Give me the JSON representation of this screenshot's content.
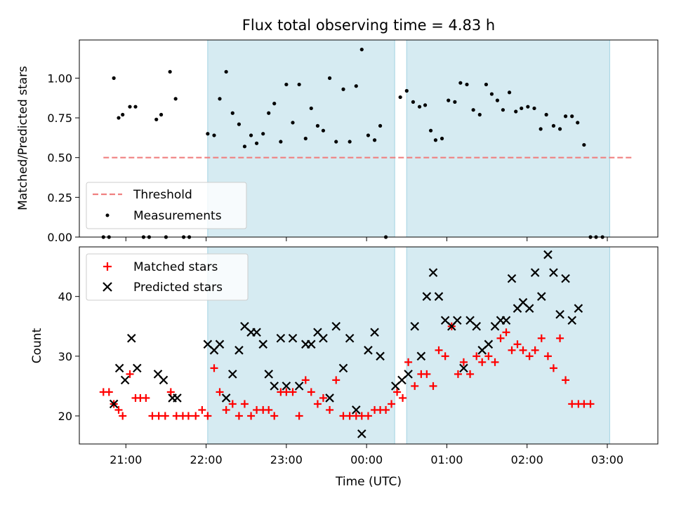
{
  "chart_data": [
    {
      "type": "scatter",
      "title": "Flux total observing time = 4.83 h",
      "ylabel": "Matched/Predicted stars",
      "ylim": [
        0,
        1.24
      ],
      "yticks": [
        0,
        0.25,
        0.5,
        0.75,
        1.0
      ],
      "ytick_labels": [
        "0.00",
        "0.25",
        "0.50",
        "0.75",
        "1.00"
      ],
      "xlim": [
        20.42,
        27.63
      ],
      "xticks": [
        21,
        22,
        23,
        24,
        25,
        26,
        27
      ],
      "grid": false,
      "legend_position": "lower-left",
      "shaded_intervals": [
        [
          22.02,
          24.35
        ],
        [
          24.5,
          27.03
        ]
      ],
      "threshold": {
        "name": "Threshold",
        "value": 0.5,
        "x_range": [
          20.72,
          27.3
        ],
        "color": "#f08080"
      },
      "measurements": {
        "name": "Measurements",
        "color": "#000000",
        "points": [
          [
            20.72,
            0
          ],
          [
            20.79,
            0
          ],
          [
            20.85,
            1.0
          ],
          [
            20.91,
            0.75
          ],
          [
            20.96,
            0.77
          ],
          [
            21.05,
            0.82
          ],
          [
            21.12,
            0.82
          ],
          [
            21.22,
            0
          ],
          [
            21.29,
            0
          ],
          [
            21.38,
            0.74
          ],
          [
            21.44,
            0.77
          ],
          [
            21.5,
            0
          ],
          [
            21.55,
            1.04
          ],
          [
            21.62,
            0.87
          ],
          [
            21.72,
            0
          ],
          [
            21.79,
            0
          ],
          [
            22.02,
            0.65
          ],
          [
            22.1,
            0.64
          ],
          [
            22.17,
            0.87
          ],
          [
            22.25,
            1.04
          ],
          [
            22.33,
            0.78
          ],
          [
            22.41,
            0.71
          ],
          [
            22.48,
            0.57
          ],
          [
            22.56,
            0.64
          ],
          [
            22.63,
            0.59
          ],
          [
            22.71,
            0.65
          ],
          [
            22.78,
            0.78
          ],
          [
            22.85,
            0.84
          ],
          [
            22.93,
            0.6
          ],
          [
            23.0,
            0.96
          ],
          [
            23.08,
            0.72
          ],
          [
            23.16,
            0.96
          ],
          [
            23.24,
            0.62
          ],
          [
            23.31,
            0.81
          ],
          [
            23.39,
            0.7
          ],
          [
            23.46,
            0.67
          ],
          [
            23.54,
            1.0
          ],
          [
            23.62,
            0.6
          ],
          [
            23.71,
            0.93
          ],
          [
            23.79,
            0.6
          ],
          [
            23.87,
            0.95
          ],
          [
            23.94,
            1.18
          ],
          [
            24.02,
            0.64
          ],
          [
            24.1,
            0.61
          ],
          [
            24.17,
            0.7
          ],
          [
            24.24,
            0
          ],
          [
            24.42,
            0.88
          ],
          [
            24.5,
            0.92
          ],
          [
            24.58,
            0.85
          ],
          [
            24.66,
            0.82
          ],
          [
            24.73,
            0.83
          ],
          [
            24.8,
            0.67
          ],
          [
            24.86,
            0.61
          ],
          [
            24.94,
            0.62
          ],
          [
            25.02,
            0.86
          ],
          [
            25.1,
            0.85
          ],
          [
            25.17,
            0.97
          ],
          [
            25.25,
            0.96
          ],
          [
            25.33,
            0.8
          ],
          [
            25.41,
            0.77
          ],
          [
            25.49,
            0.96
          ],
          [
            25.56,
            0.9
          ],
          [
            25.63,
            0.86
          ],
          [
            25.7,
            0.8
          ],
          [
            25.78,
            0.91
          ],
          [
            25.86,
            0.79
          ],
          [
            25.93,
            0.81
          ],
          [
            26.01,
            0.82
          ],
          [
            26.09,
            0.81
          ],
          [
            26.17,
            0.68
          ],
          [
            26.24,
            0.77
          ],
          [
            26.33,
            0.7
          ],
          [
            26.41,
            0.68
          ],
          [
            26.48,
            0.76
          ],
          [
            26.56,
            0.76
          ],
          [
            26.63,
            0.72
          ],
          [
            26.71,
            0.58
          ],
          [
            26.79,
            0
          ],
          [
            26.86,
            0
          ],
          [
            26.94,
            0
          ]
        ]
      }
    },
    {
      "type": "scatter",
      "xlabel": "Time (UTC)",
      "ylabel": "Count",
      "ylim": [
        15.3,
        48.3
      ],
      "yticks": [
        20,
        30,
        40
      ],
      "ytick_labels": [
        "20",
        "30",
        "40"
      ],
      "xlim": [
        20.42,
        27.63
      ],
      "xticks": [
        21,
        22,
        23,
        24,
        25,
        26,
        27
      ],
      "xtick_labels": [
        "21:00",
        "22:00",
        "23:00",
        "00:00",
        "01:00",
        "02:00",
        "03:00"
      ],
      "grid": false,
      "legend_position": "top-left",
      "shaded_intervals": [
        [
          22.02,
          24.35
        ],
        [
          24.5,
          27.03
        ]
      ],
      "series": [
        {
          "name": "Matched stars",
          "color": "#ff0000",
          "marker": "plus",
          "points": [
            [
              20.72,
              24
            ],
            [
              20.79,
              24
            ],
            [
              20.85,
              22
            ],
            [
              20.91,
              21
            ],
            [
              20.96,
              20
            ],
            [
              21.05,
              27
            ],
            [
              21.12,
              23
            ],
            [
              21.18,
              23
            ],
            [
              21.25,
              23
            ],
            [
              21.33,
              20
            ],
            [
              21.41,
              20
            ],
            [
              21.49,
              20
            ],
            [
              21.56,
              24
            ],
            [
              21.63,
              20
            ],
            [
              21.71,
              20
            ],
            [
              21.78,
              20
            ],
            [
              21.87,
              20
            ],
            [
              21.95,
              21
            ],
            [
              22.02,
              20
            ],
            [
              22.1,
              28
            ],
            [
              22.17,
              24
            ],
            [
              22.25,
              21
            ],
            [
              22.33,
              22
            ],
            [
              22.41,
              20
            ],
            [
              22.48,
              22
            ],
            [
              22.56,
              20
            ],
            [
              22.63,
              21
            ],
            [
              22.71,
              21
            ],
            [
              22.78,
              21
            ],
            [
              22.85,
              20
            ],
            [
              22.93,
              24
            ],
            [
              23.0,
              24
            ],
            [
              23.08,
              24
            ],
            [
              23.16,
              20
            ],
            [
              23.24,
              26
            ],
            [
              23.31,
              24
            ],
            [
              23.39,
              22
            ],
            [
              23.46,
              23
            ],
            [
              23.54,
              21
            ],
            [
              23.62,
              26
            ],
            [
              23.71,
              20
            ],
            [
              23.79,
              20
            ],
            [
              23.87,
              20
            ],
            [
              23.94,
              20
            ],
            [
              24.02,
              20
            ],
            [
              24.1,
              21
            ],
            [
              24.17,
              21
            ],
            [
              24.24,
              21
            ],
            [
              24.31,
              22
            ],
            [
              24.38,
              24
            ],
            [
              24.45,
              23
            ],
            [
              24.52,
              29
            ],
            [
              24.6,
              25
            ],
            [
              24.68,
              27
            ],
            [
              24.75,
              27
            ],
            [
              24.83,
              25
            ],
            [
              24.9,
              31
            ],
            [
              24.98,
              30
            ],
            [
              25.06,
              35
            ],
            [
              25.14,
              27
            ],
            [
              25.21,
              29
            ],
            [
              25.29,
              27
            ],
            [
              25.37,
              30
            ],
            [
              25.44,
              29
            ],
            [
              25.52,
              30
            ],
            [
              25.6,
              29
            ],
            [
              25.67,
              33
            ],
            [
              25.74,
              34
            ],
            [
              25.81,
              31
            ],
            [
              25.88,
              32
            ],
            [
              25.95,
              31
            ],
            [
              26.03,
              30
            ],
            [
              26.1,
              31
            ],
            [
              26.18,
              33
            ],
            [
              26.26,
              30
            ],
            [
              26.33,
              28
            ],
            [
              26.41,
              33
            ],
            [
              26.48,
              26
            ],
            [
              26.56,
              22
            ],
            [
              26.64,
              22
            ],
            [
              26.71,
              22
            ],
            [
              26.79,
              22
            ]
          ]
        },
        {
          "name": "Predicted stars",
          "color": "#000000",
          "marker": "x",
          "points": [
            [
              20.85,
              22
            ],
            [
              20.92,
              28
            ],
            [
              20.99,
              26
            ],
            [
              21.07,
              33
            ],
            [
              21.14,
              28
            ],
            [
              21.4,
              27
            ],
            [
              21.47,
              26
            ],
            [
              21.58,
              23
            ],
            [
              21.64,
              23
            ],
            [
              22.02,
              32
            ],
            [
              22.1,
              31
            ],
            [
              22.17,
              32
            ],
            [
              22.25,
              23
            ],
            [
              22.33,
              27
            ],
            [
              22.41,
              31
            ],
            [
              22.48,
              35
            ],
            [
              22.56,
              34
            ],
            [
              22.63,
              34
            ],
            [
              22.71,
              32
            ],
            [
              22.78,
              27
            ],
            [
              22.85,
              25
            ],
            [
              22.93,
              33
            ],
            [
              23.0,
              25
            ],
            [
              23.08,
              33
            ],
            [
              23.16,
              25
            ],
            [
              23.24,
              32
            ],
            [
              23.31,
              32
            ],
            [
              23.39,
              34
            ],
            [
              23.46,
              33
            ],
            [
              23.54,
              23
            ],
            [
              23.62,
              35
            ],
            [
              23.71,
              28
            ],
            [
              23.79,
              33
            ],
            [
              23.87,
              21
            ],
            [
              23.94,
              17
            ],
            [
              24.02,
              31
            ],
            [
              24.1,
              34
            ],
            [
              24.17,
              30
            ],
            [
              24.36,
              25
            ],
            [
              24.44,
              26
            ],
            [
              24.52,
              27
            ],
            [
              24.6,
              35
            ],
            [
              24.68,
              30
            ],
            [
              24.75,
              40
            ],
            [
              24.83,
              44
            ],
            [
              24.9,
              40
            ],
            [
              24.98,
              36
            ],
            [
              25.06,
              35
            ],
            [
              25.13,
              36
            ],
            [
              25.21,
              28
            ],
            [
              25.29,
              36
            ],
            [
              25.37,
              35
            ],
            [
              25.44,
              31
            ],
            [
              25.52,
              32
            ],
            [
              25.6,
              35
            ],
            [
              25.67,
              36
            ],
            [
              25.74,
              36
            ],
            [
              25.81,
              43
            ],
            [
              25.88,
              38
            ],
            [
              25.95,
              39
            ],
            [
              26.03,
              38
            ],
            [
              26.1,
              44
            ],
            [
              26.18,
              40
            ],
            [
              26.26,
              47
            ],
            [
              26.33,
              44
            ],
            [
              26.41,
              37
            ],
            [
              26.48,
              43
            ],
            [
              26.56,
              36
            ],
            [
              26.64,
              38
            ]
          ]
        }
      ]
    }
  ]
}
